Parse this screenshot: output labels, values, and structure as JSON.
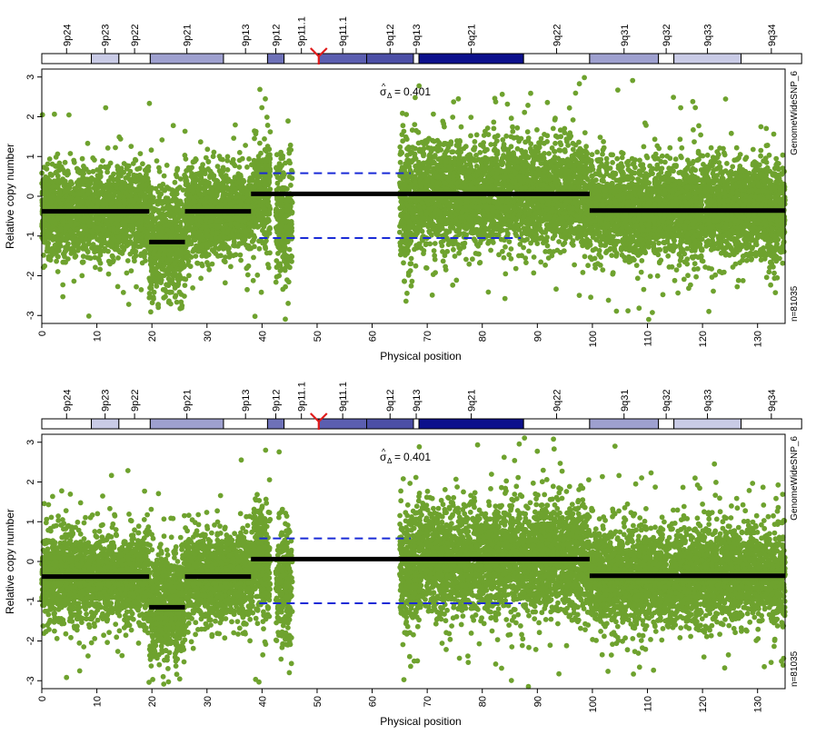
{
  "chart_data": [
    {
      "type": "scatter",
      "title": "",
      "xlabel": "Physical position",
      "ylabel": "Relative copy number",
      "xlim": [
        0,
        135
      ],
      "ylim": [
        -3.2,
        3.2
      ],
      "x_ticks": [
        0,
        10,
        20,
        30,
        40,
        50,
        60,
        70,
        80,
        90,
        100,
        110,
        120,
        130
      ],
      "y_ticks": [
        3,
        2,
        1,
        0,
        -1,
        -2,
        -3
      ],
      "sigma_label": "0.401",
      "right_label_top": "GenomeWideSNP_6",
      "right_label_bottom": "n=81035",
      "point_color": "#6ea22e",
      "segment_color": "#000000",
      "threshold_color": "#1a2bd6",
      "centromere_color": "#e01b1b",
      "centromere_position": 50.3,
      "threshold_lines": [
        {
          "y": 0.58,
          "x_start": 39.5,
          "x_end": 67
        },
        {
          "y": -1.05,
          "x_start": 39.5,
          "x_end": 87
        }
      ],
      "segments": [
        {
          "x_start": 0,
          "x_end": 19.5,
          "y": -0.38
        },
        {
          "x_start": 19.5,
          "x_end": 26,
          "y": -1.15
        },
        {
          "x_start": 26,
          "x_end": 38,
          "y": -0.38
        },
        {
          "x_start": 38,
          "x_end": 99.5,
          "y": 0.06
        },
        {
          "x_start": 99.5,
          "x_end": 135,
          "y": -0.36
        }
      ],
      "cytobands": [
        {
          "name": "9p24",
          "start": 0,
          "end": 9.0,
          "fill": "#ffffff"
        },
        {
          "name": "9p23",
          "start": 9.0,
          "end": 14.0,
          "fill": "#c9cbe6"
        },
        {
          "name": "9p22",
          "start": 14.0,
          "end": 19.7,
          "fill": "#ffffff"
        },
        {
          "name": "9p21",
          "start": 19.7,
          "end": 33.0,
          "fill": "#9ea0cf"
        },
        {
          "name": "9p13",
          "start": 33.0,
          "end": 41.0,
          "fill": "#ffffff"
        },
        {
          "name": "9p12",
          "start": 41.0,
          "end": 44.0,
          "fill": "#6e71b8"
        },
        {
          "name": "9p11.1",
          "start": 44.0,
          "end": 50.3,
          "fill": "#ffffff"
        },
        {
          "name": "9q11.1",
          "start": 50.3,
          "end": 59.0,
          "fill": "#5b5eb0"
        },
        {
          "name": "9q12",
          "start": 59.0,
          "end": 67.5,
          "fill": "#4c4fa6"
        },
        {
          "name": "9q13",
          "start": 67.5,
          "end": 68.5,
          "fill": "#ffffff"
        },
        {
          "name": "9q21",
          "start": 68.5,
          "end": 87.5,
          "fill": "#0c108c"
        },
        {
          "name": "9q22",
          "start": 87.5,
          "end": 99.5,
          "fill": "#ffffff"
        },
        {
          "name": "9q31",
          "start": 99.5,
          "end": 112.0,
          "fill": "#9ea0cf"
        },
        {
          "name": "9q32",
          "start": 112.0,
          "end": 114.8,
          "fill": "#ffffff"
        },
        {
          "name": "9q33",
          "start": 114.8,
          "end": 127.0,
          "fill": "#c9cbe6"
        },
        {
          "name": "9q34",
          "start": 127.0,
          "end": 138.0,
          "fill": "#ffffff"
        }
      ],
      "regions": [
        {
          "x_start": 0,
          "x_end": 19.5,
          "mean": -0.38,
          "sd": 0.55
        },
        {
          "x_start": 19.5,
          "x_end": 26,
          "mean": -1.15,
          "sd": 0.7
        },
        {
          "x_start": 26,
          "x_end": 38.5,
          "mean": -0.38,
          "sd": 0.55
        },
        {
          "x_start": 38.5,
          "x_end": 41.5,
          "mean": 0.0,
          "sd": 0.7
        },
        {
          "x_start": 42.5,
          "x_end": 45.5,
          "mean": -0.6,
          "sd": 0.7
        },
        {
          "x_start": 65,
          "x_end": 68.5,
          "mean": -0.2,
          "sd": 0.75
        },
        {
          "x_start": 68.5,
          "x_end": 99.5,
          "mean": 0.06,
          "sd": 0.65
        },
        {
          "x_start": 99.5,
          "x_end": 135,
          "mean": -0.36,
          "sd": 0.6
        }
      ]
    },
    {
      "type": "scatter",
      "title": "",
      "xlabel": "Physical position",
      "ylabel": "Relative copy number",
      "xlim": [
        0,
        135
      ],
      "ylim": [
        -3.2,
        3.2
      ],
      "x_ticks": [
        0,
        10,
        20,
        30,
        40,
        50,
        60,
        70,
        80,
        90,
        100,
        110,
        120,
        130
      ],
      "y_ticks": [
        3,
        2,
        1,
        0,
        -1,
        -2,
        -3
      ],
      "sigma_label": "0.401",
      "right_label_top": "GenomeWideSNP_6",
      "right_label_bottom": "n=81035",
      "point_color": "#6ea22e",
      "segment_color": "#000000",
      "threshold_color": "#1a2bd6",
      "centromere_color": "#e01b1b",
      "centromere_position": 50.3,
      "threshold_lines": [
        {
          "y": 0.58,
          "x_start": 39.5,
          "x_end": 67
        },
        {
          "y": -1.05,
          "x_start": 39.5,
          "x_end": 87
        }
      ],
      "segments": [
        {
          "x_start": 0,
          "x_end": 19.5,
          "y": -0.38
        },
        {
          "x_start": 19.5,
          "x_end": 26,
          "y": -1.15
        },
        {
          "x_start": 26,
          "x_end": 38,
          "y": -0.38
        },
        {
          "x_start": 38,
          "x_end": 99.5,
          "y": 0.06
        },
        {
          "x_start": 99.5,
          "x_end": 135,
          "y": -0.36
        }
      ],
      "cytobands": [
        {
          "name": "9p24",
          "start": 0,
          "end": 9.0,
          "fill": "#ffffff"
        },
        {
          "name": "9p23",
          "start": 9.0,
          "end": 14.0,
          "fill": "#c9cbe6"
        },
        {
          "name": "9p22",
          "start": 14.0,
          "end": 19.7,
          "fill": "#ffffff"
        },
        {
          "name": "9p21",
          "start": 19.7,
          "end": 33.0,
          "fill": "#9ea0cf"
        },
        {
          "name": "9p13",
          "start": 33.0,
          "end": 41.0,
          "fill": "#ffffff"
        },
        {
          "name": "9p12",
          "start": 41.0,
          "end": 44.0,
          "fill": "#6e71b8"
        },
        {
          "name": "9p11.1",
          "start": 44.0,
          "end": 50.3,
          "fill": "#ffffff"
        },
        {
          "name": "9q11.1",
          "start": 50.3,
          "end": 59.0,
          "fill": "#5b5eb0"
        },
        {
          "name": "9q12",
          "start": 59.0,
          "end": 67.5,
          "fill": "#4c4fa6"
        },
        {
          "name": "9q13",
          "start": 67.5,
          "end": 68.5,
          "fill": "#ffffff"
        },
        {
          "name": "9q21",
          "start": 68.5,
          "end": 87.5,
          "fill": "#0c108c"
        },
        {
          "name": "9q22",
          "start": 87.5,
          "end": 99.5,
          "fill": "#ffffff"
        },
        {
          "name": "9q31",
          "start": 99.5,
          "end": 112.0,
          "fill": "#9ea0cf"
        },
        {
          "name": "9q32",
          "start": 112.0,
          "end": 114.8,
          "fill": "#ffffff"
        },
        {
          "name": "9q33",
          "start": 114.8,
          "end": 127.0,
          "fill": "#c9cbe6"
        },
        {
          "name": "9q34",
          "start": 127.0,
          "end": 138.0,
          "fill": "#ffffff"
        }
      ],
      "regions": [
        {
          "x_start": 0,
          "x_end": 19.5,
          "mean": -0.38,
          "sd": 0.55
        },
        {
          "x_start": 19.5,
          "x_end": 26,
          "mean": -1.15,
          "sd": 0.7
        },
        {
          "x_start": 26,
          "x_end": 38.5,
          "mean": -0.38,
          "sd": 0.55
        },
        {
          "x_start": 38.5,
          "x_end": 41.5,
          "mean": 0.0,
          "sd": 0.7
        },
        {
          "x_start": 42.5,
          "x_end": 45.5,
          "mean": -0.6,
          "sd": 0.7
        },
        {
          "x_start": 65,
          "x_end": 68.5,
          "mean": -0.2,
          "sd": 0.75
        },
        {
          "x_start": 68.5,
          "x_end": 99.5,
          "mean": 0.06,
          "sd": 0.65
        },
        {
          "x_start": 99.5,
          "x_end": 135,
          "mean": -0.36,
          "sd": 0.6
        }
      ]
    }
  ]
}
